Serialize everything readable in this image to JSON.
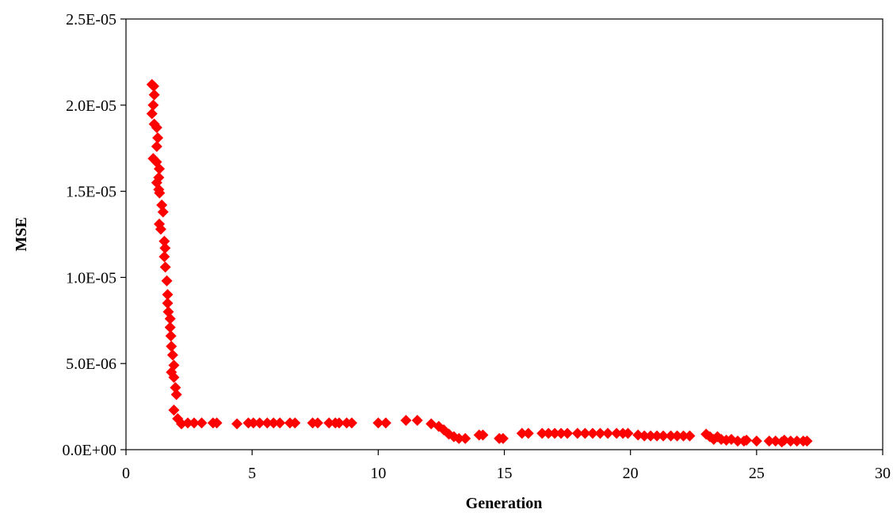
{
  "chart_data": {
    "type": "scatter",
    "title": "",
    "xlabel": "Generation",
    "ylabel": "MSE",
    "xlim": [
      0,
      30
    ],
    "ylim": [
      0,
      2.5e-05
    ],
    "x_ticks": [
      0,
      5,
      10,
      15,
      20,
      25,
      30
    ],
    "x_tick_labels": [
      "0",
      "5",
      "10",
      "15",
      "20",
      "25",
      "30"
    ],
    "y_ticks": [
      0,
      5e-06,
      1e-05,
      1.5e-05,
      2e-05,
      2.5e-05
    ],
    "y_tick_labels": [
      "0.0E+00",
      "5.0E-06",
      "1.0E-05",
      "1.5E-05",
      "2.0E-05",
      "2.5E-05"
    ],
    "grid": false,
    "marker": "diamond",
    "marker_color": "#ff0000",
    "series": [
      {
        "points": [
          [
            1.03,
            2.12e-05
          ],
          [
            1.1,
            2.11e-05
          ],
          [
            1.12,
            2.06e-05
          ],
          [
            1.08,
            2e-05
          ],
          [
            1.03,
            1.95e-05
          ],
          [
            1.12,
            1.89e-05
          ],
          [
            1.22,
            1.87e-05
          ],
          [
            1.26,
            1.81e-05
          ],
          [
            1.22,
            1.76e-05
          ],
          [
            1.08,
            1.69e-05
          ],
          [
            1.21,
            1.67e-05
          ],
          [
            1.32,
            1.63e-05
          ],
          [
            1.3,
            1.58e-05
          ],
          [
            1.22,
            1.55e-05
          ],
          [
            1.3,
            1.51e-05
          ],
          [
            1.33,
            1.49e-05
          ],
          [
            1.42,
            1.42e-05
          ],
          [
            1.47,
            1.38e-05
          ],
          [
            1.32,
            1.31e-05
          ],
          [
            1.38,
            1.28e-05
          ],
          [
            1.52,
            1.21e-05
          ],
          [
            1.55,
            1.17e-05
          ],
          [
            1.52,
            1.12e-05
          ],
          [
            1.56,
            1.06e-05
          ],
          [
            1.62,
            9.8e-06
          ],
          [
            1.65,
            9e-06
          ],
          [
            1.65,
            8.5e-06
          ],
          [
            1.68,
            8e-06
          ],
          [
            1.75,
            7.6e-06
          ],
          [
            1.75,
            7.1e-06
          ],
          [
            1.78,
            6.6e-06
          ],
          [
            1.8,
            6e-06
          ],
          [
            1.85,
            5.5e-06
          ],
          [
            1.9,
            4.9e-06
          ],
          [
            1.8,
            4.5e-06
          ],
          [
            1.9,
            4.2e-06
          ],
          [
            1.96,
            3.6e-06
          ],
          [
            2.0,
            3.2e-06
          ],
          [
            1.9,
            2.3e-06
          ],
          [
            2.05,
            1.8e-06
          ],
          [
            2.2,
            1.5e-06
          ],
          [
            2.45,
            1.55e-06
          ],
          [
            2.7,
            1.55e-06
          ],
          [
            3.0,
            1.55e-06
          ],
          [
            3.45,
            1.55e-06
          ],
          [
            3.6,
            1.55e-06
          ],
          [
            4.4,
            1.5e-06
          ],
          [
            4.85,
            1.55e-06
          ],
          [
            5.05,
            1.55e-06
          ],
          [
            5.3,
            1.55e-06
          ],
          [
            5.6,
            1.55e-06
          ],
          [
            5.85,
            1.55e-06
          ],
          [
            6.1,
            1.55e-06
          ],
          [
            6.5,
            1.55e-06
          ],
          [
            6.7,
            1.55e-06
          ],
          [
            7.4,
            1.55e-06
          ],
          [
            7.6,
            1.55e-06
          ],
          [
            8.05,
            1.55e-06
          ],
          [
            8.3,
            1.55e-06
          ],
          [
            8.45,
            1.55e-06
          ],
          [
            8.75,
            1.55e-06
          ],
          [
            8.95,
            1.55e-06
          ],
          [
            10.0,
            1.55e-06
          ],
          [
            10.3,
            1.55e-06
          ],
          [
            11.1,
            1.7e-06
          ],
          [
            11.55,
            1.7e-06
          ],
          [
            12.1,
            1.5e-06
          ],
          [
            12.4,
            1.35e-06
          ],
          [
            12.6,
            1.15e-06
          ],
          [
            12.8,
            9e-07
          ],
          [
            13.0,
            7.5e-07
          ],
          [
            13.2,
            6.5e-07
          ],
          [
            13.45,
            6.5e-07
          ],
          [
            14.0,
            8.5e-07
          ],
          [
            14.15,
            8.5e-07
          ],
          [
            14.8,
            6.5e-07
          ],
          [
            14.95,
            6.5e-07
          ],
          [
            15.7,
            9.5e-07
          ],
          [
            15.95,
            9.5e-07
          ],
          [
            16.5,
            9.5e-07
          ],
          [
            16.75,
            9.5e-07
          ],
          [
            17.0,
            9.5e-07
          ],
          [
            17.25,
            9.5e-07
          ],
          [
            17.5,
            9.5e-07
          ],
          [
            17.9,
            9.5e-07
          ],
          [
            18.2,
            9.5e-07
          ],
          [
            18.5,
            9.5e-07
          ],
          [
            18.8,
            9.5e-07
          ],
          [
            19.1,
            9.5e-07
          ],
          [
            19.45,
            9.5e-07
          ],
          [
            19.7,
            9.5e-07
          ],
          [
            19.9,
            9.5e-07
          ],
          [
            20.3,
            8.5e-07
          ],
          [
            20.55,
            8e-07
          ],
          [
            20.8,
            8e-07
          ],
          [
            21.05,
            8e-07
          ],
          [
            21.3,
            8e-07
          ],
          [
            21.6,
            8e-07
          ],
          [
            21.85,
            8e-07
          ],
          [
            22.1,
            8e-07
          ],
          [
            22.35,
            8e-07
          ],
          [
            23.0,
            9e-07
          ],
          [
            23.15,
            7.5e-07
          ],
          [
            23.3,
            6e-07
          ],
          [
            23.45,
            7.5e-07
          ],
          [
            23.6,
            6e-07
          ],
          [
            23.8,
            5.5e-07
          ],
          [
            24.0,
            6e-07
          ],
          [
            24.25,
            5e-07
          ],
          [
            24.5,
            5e-07
          ],
          [
            24.6,
            5.5e-07
          ],
          [
            25.0,
            5e-07
          ],
          [
            25.5,
            5e-07
          ],
          [
            25.75,
            5e-07
          ],
          [
            26.0,
            4.5e-07
          ],
          [
            26.1,
            5.5e-07
          ],
          [
            26.35,
            5e-07
          ],
          [
            26.6,
            5e-07
          ],
          [
            26.85,
            5e-07
          ],
          [
            27.0,
            5e-07
          ]
        ]
      }
    ]
  }
}
